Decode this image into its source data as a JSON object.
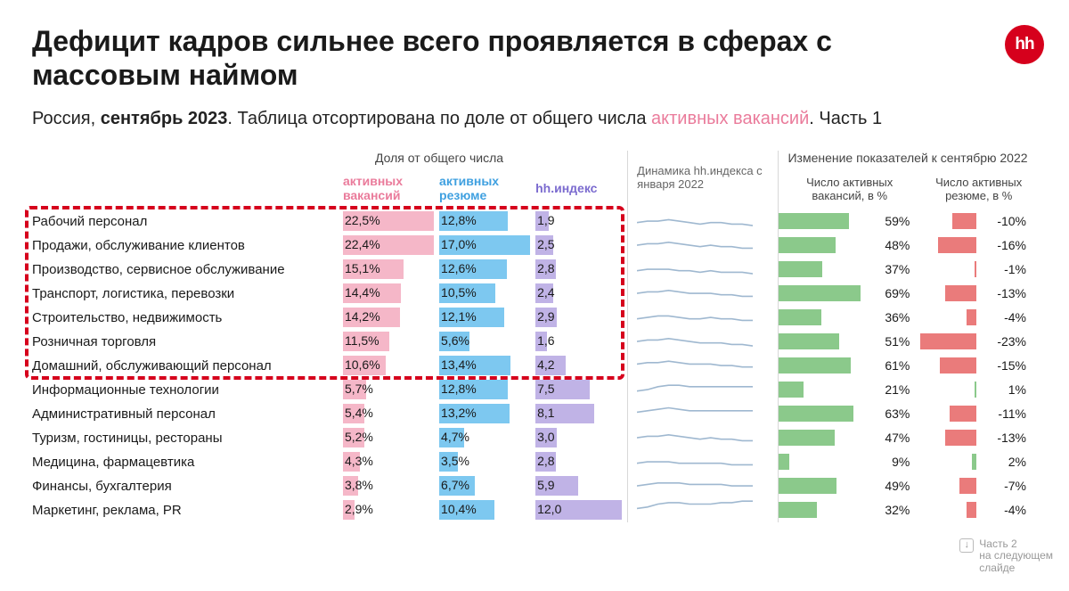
{
  "brand": {
    "logo_text": "hh",
    "logo_bg": "#d6001c"
  },
  "title": "Дефицит кадров сильнее всего проявляется в сферах с массовым наймом",
  "subtitle": {
    "pre": "Россия, ",
    "bold": "сентябрь 2023",
    "mid": ". Таблица отсортирована по доле от общего числа ",
    "highlight": "активных вакансий",
    "post": ". Часть 1"
  },
  "headers": {
    "group_share": "Доля от общего числа",
    "vac": "активных\nвакансий",
    "res": "активных\nрезюме",
    "index": "hh.индекс",
    "spark": "Динамика\nhh.индекса\nс января\n2022",
    "group_change": "Изменение показателей\nк сентябрю 2022",
    "change_vac": "Число активных\nвакансий, в %",
    "change_res": "Число активных\nрезюме, в %"
  },
  "colors": {
    "vac_bar": "#f5b7c8",
    "res_bar": "#7dc8f0",
    "idx_bar": "#c0b3e6",
    "pos_bar": "#8bc98b",
    "neg_bar": "#ea7b7b",
    "spark_stroke": "#9fb8d0",
    "border_dash": "#d6001c"
  },
  "table": {
    "vac_max": 22.5,
    "res_max": 17.0,
    "idx_max": 12.0,
    "posvac_max": 69,
    "negres_max": 23,
    "highlight_rows": [
      0,
      1,
      2,
      3,
      4,
      5,
      6
    ],
    "rows": [
      {
        "cat": "Рабочий персонал",
        "vac": "22,5%",
        "vac_n": 22.5,
        "res": "12,8%",
        "res_n": 12.8,
        "idx": "1,9",
        "idx_n": 1.9,
        "dvac": "59%",
        "dvac_n": 59,
        "dres": "-10%",
        "dres_n": -10,
        "spark": [
          5,
          6,
          6,
          7,
          6,
          5,
          4,
          5,
          5,
          4,
          4,
          3
        ]
      },
      {
        "cat": "Продажи, обслуживание клиентов",
        "vac": "22,4%",
        "vac_n": 22.4,
        "res": "17,0%",
        "res_n": 17.0,
        "idx": "2,5",
        "idx_n": 2.5,
        "dvac": "48%",
        "dvac_n": 48,
        "dres": "-16%",
        "dres_n": -16,
        "spark": [
          6,
          7,
          7,
          8,
          7,
          6,
          5,
          6,
          5,
          5,
          4,
          4
        ]
      },
      {
        "cat": "Производство, сервисное обслуживание",
        "vac": "15,1%",
        "vac_n": 15.1,
        "res": "12,6%",
        "res_n": 12.6,
        "idx": "2,8",
        "idx_n": 2.8,
        "dvac": "37%",
        "dvac_n": 37,
        "dres": "-1%",
        "dres_n": -1,
        "spark": [
          5,
          6,
          6,
          6,
          5,
          5,
          4,
          5,
          4,
          4,
          4,
          3
        ]
      },
      {
        "cat": "Транспорт, логистика, перевозки",
        "vac": "14,4%",
        "vac_n": 14.4,
        "res": "10,5%",
        "res_n": 10.5,
        "idx": "2,4",
        "idx_n": 2.4,
        "dvac": "69%",
        "dvac_n": 69,
        "dres": "-13%",
        "dres_n": -13,
        "spark": [
          6,
          7,
          7,
          8,
          7,
          6,
          6,
          6,
          5,
          5,
          4,
          4
        ]
      },
      {
        "cat": "Строительство, недвижимость",
        "vac": "14,2%",
        "vac_n": 14.2,
        "res": "12,1%",
        "res_n": 12.1,
        "idx": "2,9",
        "idx_n": 2.9,
        "dvac": "36%",
        "dvac_n": 36,
        "dres": "-4%",
        "dres_n": -4,
        "spark": [
          5,
          6,
          7,
          7,
          6,
          5,
          5,
          6,
          5,
          5,
          4,
          4
        ]
      },
      {
        "cat": "Розничная торговля",
        "vac": "11,5%",
        "vac_n": 11.5,
        "res": "5,6%",
        "res_n": 5.6,
        "idx": "1,6",
        "idx_n": 1.6,
        "dvac": "51%",
        "dvac_n": 51,
        "dres": "-23%",
        "dres_n": -23,
        "spark": [
          6,
          7,
          7,
          8,
          7,
          6,
          5,
          5,
          5,
          4,
          4,
          3
        ]
      },
      {
        "cat": "Домашний, обслуживающий персонал",
        "vac": "10,6%",
        "vac_n": 10.6,
        "res": "13,4%",
        "res_n": 13.4,
        "idx": "4,2",
        "idx_n": 4.2,
        "dvac": "61%",
        "dvac_n": 61,
        "dres": "-15%",
        "dres_n": -15,
        "spark": [
          7,
          8,
          8,
          9,
          8,
          7,
          7,
          7,
          6,
          6,
          5,
          5
        ]
      },
      {
        "cat": "Информационные технологии",
        "vac": "5,7%",
        "vac_n": 5.7,
        "res": "12,8%",
        "res_n": 12.8,
        "idx": "7,5",
        "idx_n": 7.5,
        "dvac": "21%",
        "dvac_n": 21,
        "dres": "1%",
        "dres_n": 1,
        "spark": [
          5,
          6,
          8,
          9,
          9,
          8,
          8,
          8,
          8,
          8,
          8,
          8
        ]
      },
      {
        "cat": "Административный персонал",
        "vac": "5,4%",
        "vac_n": 5.4,
        "res": "13,2%",
        "res_n": 13.2,
        "idx": "8,1",
        "idx_n": 8.1,
        "dvac": "63%",
        "dvac_n": 63,
        "dres": "-11%",
        "dres_n": -11,
        "spark": [
          7,
          8,
          9,
          10,
          9,
          8,
          8,
          8,
          8,
          8,
          8,
          8
        ]
      },
      {
        "cat": "Туризм, гостиницы, рестораны",
        "vac": "5,2%",
        "vac_n": 5.2,
        "res": "4,7%",
        "res_n": 4.7,
        "idx": "3,0",
        "idx_n": 3.0,
        "dvac": "47%",
        "dvac_n": 47,
        "dres": "-13%",
        "dres_n": -13,
        "spark": [
          6,
          7,
          7,
          8,
          7,
          6,
          5,
          6,
          5,
          5,
          4,
          4
        ]
      },
      {
        "cat": "Медицина, фармацевтика",
        "vac": "4,3%",
        "vac_n": 4.3,
        "res": "3,5%",
        "res_n": 3.5,
        "idx": "2,8",
        "idx_n": 2.8,
        "dvac": "9%",
        "dvac_n": 9,
        "dres": "2%",
        "dres_n": 2,
        "spark": [
          5,
          6,
          6,
          6,
          5,
          5,
          5,
          5,
          5,
          4,
          4,
          4
        ]
      },
      {
        "cat": "Финансы, бухгалтерия",
        "vac": "3,8%",
        "vac_n": 3.8,
        "res": "6,7%",
        "res_n": 6.7,
        "idx": "5,9",
        "idx_n": 5.9,
        "dvac": "49%",
        "dvac_n": 49,
        "dres": "-7%",
        "dres_n": -7,
        "spark": [
          6,
          7,
          8,
          8,
          8,
          7,
          7,
          7,
          7,
          6,
          6,
          6
        ]
      },
      {
        "cat": "Маркетинг, реклама, PR",
        "vac": "2,9%",
        "vac_n": 2.9,
        "res": "10,4%",
        "res_n": 10.4,
        "idx": "12,0",
        "idx_n": 12.0,
        "dvac": "32%",
        "dvac_n": 32,
        "dres": "-4%",
        "dres_n": -4,
        "spark": [
          7,
          8,
          10,
          11,
          11,
          10,
          10,
          10,
          11,
          11,
          12,
          12
        ]
      }
    ]
  },
  "footer": {
    "icon": "↓",
    "line1": "Часть 2",
    "line2": "на следующем",
    "line3": "слайде"
  }
}
